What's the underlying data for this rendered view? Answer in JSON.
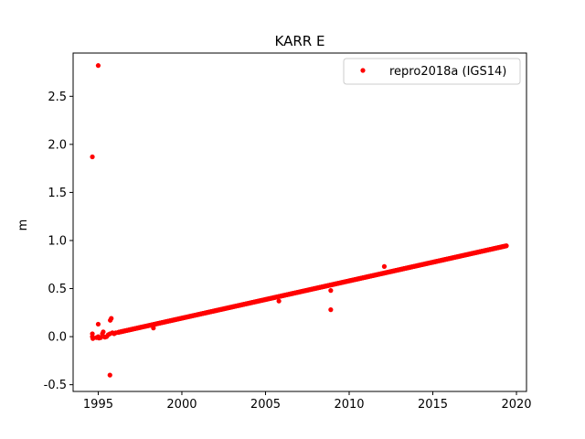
{
  "chart_data": {
    "type": "scatter",
    "title": "KARR E",
    "xlabel": "",
    "ylabel": "m",
    "xlim": [
      1993.5,
      2020.6
    ],
    "ylim": [
      -0.57,
      2.95
    ],
    "xticks": [
      1995,
      2000,
      2005,
      2010,
      2015,
      2020
    ],
    "yticks": [
      -0.5,
      0.0,
      0.5,
      1.0,
      1.5,
      2.0,
      2.5
    ],
    "grid": false,
    "legend_position": "top-right",
    "colors": {
      "series": "#ff0000"
    },
    "series": [
      {
        "name": "repro2018a (IGS14)",
        "trend": {
          "x_start": 1996.2,
          "x_end": 2019.4,
          "y_start": 0.045,
          "y_end": 0.945
        },
        "early_points": [
          {
            "x": 1994.65,
            "y": 0.0
          },
          {
            "x": 1994.65,
            "y": 0.03
          },
          {
            "x": 1994.68,
            "y": -0.02
          },
          {
            "x": 1994.9,
            "y": -0.01
          },
          {
            "x": 1995.0,
            "y": 0.0
          },
          {
            "x": 1995.05,
            "y": -0.015
          },
          {
            "x": 1995.15,
            "y": -0.01
          },
          {
            "x": 1995.25,
            "y": 0.03
          },
          {
            "x": 1995.3,
            "y": 0.05
          },
          {
            "x": 1995.4,
            "y": -0.005
          },
          {
            "x": 1995.5,
            "y": 0.0
          },
          {
            "x": 1995.6,
            "y": 0.02
          },
          {
            "x": 1995.7,
            "y": 0.03
          },
          {
            "x": 1995.85,
            "y": 0.04
          },
          {
            "x": 1995.95,
            "y": 0.03
          },
          {
            "x": 1996.05,
            "y": 0.04
          }
        ],
        "outliers": [
          {
            "x": 1994.65,
            "y": 1.87
          },
          {
            "x": 1995.0,
            "y": 2.82
          },
          {
            "x": 1995.0,
            "y": 0.13
          },
          {
            "x": 1995.72,
            "y": 0.17
          },
          {
            "x": 1995.78,
            "y": 0.19
          },
          {
            "x": 1995.7,
            "y": -0.4
          },
          {
            "x": 1998.3,
            "y": 0.09
          },
          {
            "x": 2005.8,
            "y": 0.37
          },
          {
            "x": 2008.9,
            "y": 0.28
          },
          {
            "x": 2008.9,
            "y": 0.48
          },
          {
            "x": 2012.1,
            "y": 0.73
          }
        ]
      }
    ]
  }
}
